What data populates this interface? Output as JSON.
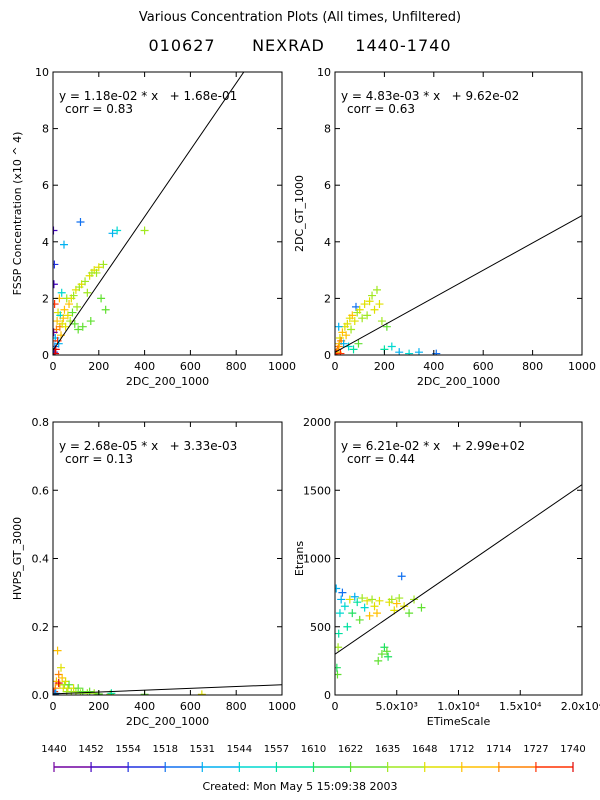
{
  "title": "Various Concentration Plots (All times, Unfiltered)",
  "subtitle": "010627      NEXRAD     1440-1740",
  "created": "Created: Mon May  5 15:09:38 2003",
  "colors": {
    "axis": "#000000",
    "fit_line": "#000000",
    "palette": [
      "#7000a0",
      "#4000c0",
      "#2030e0",
      "#1070f0",
      "#00b0f0",
      "#00d8d0",
      "#00e0a0",
      "#20e060",
      "#60e030",
      "#a0e820",
      "#e0e000",
      "#ffc000",
      "#ff8000",
      "#ff3000",
      "#e00000"
    ]
  },
  "time_legend": {
    "labels": [
      "1440",
      "1452",
      "1554",
      "1518",
      "1531",
      "1544",
      "1557",
      "1610",
      "1622",
      "1635",
      "1648",
      "1712",
      "1714",
      "1727",
      "1740"
    ]
  },
  "chart_data": [
    {
      "type": "scatter",
      "id": "p1",
      "xlabel": "2DC_200_1000",
      "ylabel": "FSSP Concentration (x10 ^ 4)",
      "xlim": [
        0,
        1000
      ],
      "ylim": [
        0,
        10
      ],
      "xticks": [
        0,
        200,
        400,
        600,
        800,
        1000
      ],
      "yticks": [
        0,
        2,
        4,
        6,
        8,
        10
      ],
      "xtick_labels": [
        "0",
        "200",
        "400",
        "600",
        "800",
        "1000"
      ],
      "ytick_labels": [
        "0",
        "2",
        "4",
        "6",
        "8",
        "10"
      ],
      "fit": {
        "slope": 0.0118,
        "intercept": 0.168
      },
      "equation": "y = 1.18e-02 * x   + 1.68e-01",
      "corr": "corr = 0.83",
      "points": [
        [
          5,
          0.1,
          2
        ],
        [
          8,
          0.3,
          3
        ],
        [
          10,
          0.6,
          4
        ],
        [
          12,
          0.2,
          14
        ],
        [
          15,
          0.9,
          12
        ],
        [
          18,
          1.2,
          11
        ],
        [
          20,
          0.5,
          13
        ],
        [
          22,
          1.5,
          10
        ],
        [
          25,
          0.4,
          4
        ],
        [
          28,
          2.0,
          11
        ],
        [
          30,
          1.0,
          12
        ],
        [
          32,
          1.4,
          5
        ],
        [
          35,
          0.7,
          11
        ],
        [
          38,
          2.2,
          5
        ],
        [
          40,
          1.1,
          10
        ],
        [
          45,
          1.3,
          11
        ],
        [
          48,
          3.9,
          4
        ],
        [
          50,
          1.6,
          11
        ],
        [
          55,
          1.0,
          10
        ],
        [
          60,
          2.0,
          9
        ],
        [
          65,
          1.4,
          10
        ],
        [
          70,
          1.8,
          11
        ],
        [
          75,
          1.2,
          9
        ],
        [
          80,
          2.0,
          10
        ],
        [
          85,
          1.5,
          8
        ],
        [
          90,
          2.1,
          9
        ],
        [
          95,
          1.1,
          8
        ],
        [
          100,
          2.3,
          10
        ],
        [
          105,
          1.7,
          9
        ],
        [
          110,
          0.9,
          8
        ],
        [
          115,
          2.4,
          9
        ],
        [
          120,
          4.7,
          3
        ],
        [
          125,
          2.5,
          10
        ],
        [
          130,
          1.0,
          8
        ],
        [
          140,
          2.6,
          9
        ],
        [
          150,
          2.2,
          9
        ],
        [
          160,
          2.8,
          10
        ],
        [
          165,
          1.2,
          8
        ],
        [
          170,
          2.9,
          9
        ],
        [
          180,
          3.0,
          10
        ],
        [
          190,
          2.9,
          9
        ],
        [
          200,
          3.1,
          10
        ],
        [
          210,
          2.0,
          8
        ],
        [
          220,
          3.2,
          9
        ],
        [
          230,
          1.6,
          8
        ],
        [
          260,
          4.3,
          4
        ],
        [
          280,
          4.4,
          5
        ],
        [
          400,
          4.4,
          9
        ],
        [
          3,
          0.8,
          0
        ],
        [
          4,
          2.5,
          1
        ],
        [
          6,
          3.2,
          2
        ],
        [
          2,
          4.4,
          1
        ],
        [
          7,
          1.8,
          13
        ],
        [
          9,
          0.05,
          14
        ]
      ]
    },
    {
      "type": "scatter",
      "id": "p2",
      "xlabel": "2DC_200_1000",
      "ylabel": "2DC_GT_1000",
      "xlim": [
        0,
        1000
      ],
      "ylim": [
        0,
        10
      ],
      "xticks": [
        0,
        200,
        400,
        600,
        800,
        1000
      ],
      "yticks": [
        0,
        2,
        4,
        6,
        8,
        10
      ],
      "xtick_labels": [
        "0",
        "200",
        "400",
        "600",
        "800",
        "1000"
      ],
      "ytick_labels": [
        "0",
        "2",
        "4",
        "6",
        "8",
        "10"
      ],
      "fit": {
        "slope": 0.00483,
        "intercept": 0.0962
      },
      "equation": "y = 4.83e-03 * x   + 9.62e-02",
      "corr": "corr = 0.63",
      "points": [
        [
          5,
          0.05,
          13
        ],
        [
          8,
          0.1,
          14
        ],
        [
          10,
          0.2,
          12
        ],
        [
          12,
          0.1,
          11
        ],
        [
          15,
          0.3,
          12
        ],
        [
          18,
          0.4,
          11
        ],
        [
          20,
          0.6,
          10
        ],
        [
          25,
          0.5,
          12
        ],
        [
          30,
          0.8,
          11
        ],
        [
          35,
          0.4,
          4
        ],
        [
          40,
          1.0,
          10
        ],
        [
          45,
          0.7,
          11
        ],
        [
          50,
          1.1,
          10
        ],
        [
          55,
          0.3,
          5
        ],
        [
          60,
          1.3,
          10
        ],
        [
          65,
          0.9,
          9
        ],
        [
          70,
          1.4,
          11
        ],
        [
          75,
          0.2,
          6
        ],
        [
          80,
          1.2,
          10
        ],
        [
          85,
          1.7,
          3
        ],
        [
          90,
          1.5,
          9
        ],
        [
          95,
          0.4,
          8
        ],
        [
          100,
          1.6,
          10
        ],
        [
          110,
          1.3,
          9
        ],
        [
          120,
          1.8,
          10
        ],
        [
          130,
          1.4,
          9
        ],
        [
          140,
          1.9,
          10
        ],
        [
          150,
          2.1,
          9
        ],
        [
          160,
          1.6,
          10
        ],
        [
          170,
          2.3,
          9
        ],
        [
          180,
          1.8,
          10
        ],
        [
          190,
          1.2,
          9
        ],
        [
          200,
          0.2,
          6
        ],
        [
          210,
          1.0,
          8
        ],
        [
          230,
          0.3,
          5
        ],
        [
          260,
          0.1,
          4
        ],
        [
          300,
          0.05,
          5
        ],
        [
          340,
          0.1,
          4
        ],
        [
          410,
          0.05,
          3
        ],
        [
          15,
          1.0,
          4
        ],
        [
          22,
          0.05,
          13
        ]
      ]
    },
    {
      "type": "scatter",
      "id": "p3",
      "xlabel": "2DC_200_1000",
      "ylabel": "HVPS_GT_3000",
      "xlim": [
        0,
        1000
      ],
      "ylim": [
        0,
        0.8
      ],
      "xticks": [
        0,
        200,
        400,
        600,
        800,
        1000
      ],
      "yticks": [
        0,
        0.2,
        0.4,
        0.6,
        0.8
      ],
      "xtick_labels": [
        "0",
        "200",
        "400",
        "600",
        "800",
        "1000"
      ],
      "ytick_labels": [
        "0.0",
        "0.2",
        "0.4",
        "0.6",
        "0.8"
      ],
      "fit": {
        "slope": 2.68e-05,
        "intercept": 0.00333
      },
      "equation": "y = 2.68e-05 * x   + 3.33e-03",
      "corr": "corr = 0.13",
      "points": [
        [
          5,
          0.01,
          13
        ],
        [
          10,
          0.02,
          12
        ],
        [
          15,
          0.04,
          11
        ],
        [
          20,
          0.13,
          11
        ],
        [
          25,
          0.06,
          12
        ],
        [
          30,
          0.03,
          11
        ],
        [
          35,
          0.08,
          10
        ],
        [
          40,
          0.05,
          11
        ],
        [
          45,
          0.02,
          10
        ],
        [
          50,
          0.03,
          9
        ],
        [
          55,
          0.04,
          10
        ],
        [
          60,
          0.01,
          9
        ],
        [
          65,
          0.02,
          10
        ],
        [
          70,
          0.03,
          8
        ],
        [
          80,
          0.01,
          9
        ],
        [
          90,
          0.02,
          10
        ],
        [
          100,
          0.01,
          9
        ],
        [
          110,
          0.02,
          8
        ],
        [
          120,
          0.005,
          9
        ],
        [
          130,
          0.01,
          8
        ],
        [
          150,
          0.005,
          9
        ],
        [
          160,
          0.01,
          8
        ],
        [
          180,
          0.005,
          9
        ],
        [
          200,
          0.003,
          8
        ],
        [
          250,
          0.002,
          9
        ],
        [
          400,
          0.002,
          8
        ],
        [
          650,
          0.002,
          10
        ],
        [
          255,
          0.005,
          6
        ],
        [
          12,
          0.005,
          4
        ],
        [
          8,
          0.003,
          3
        ],
        [
          25,
          0.035,
          14
        ]
      ]
    },
    {
      "type": "scatter",
      "id": "p4",
      "xlabel": "ETimeScale",
      "ylabel": "Etrans",
      "xlim": [
        0,
        20000
      ],
      "ylim": [
        0,
        2000
      ],
      "xticks": [
        0,
        5000,
        10000,
        15000,
        20000
      ],
      "yticks": [
        0,
        500,
        1000,
        1500,
        2000
      ],
      "xtick_labels": [
        "0",
        "5.0x10³",
        "1.0x10⁴",
        "1.5x10⁴",
        "2.0x10⁴"
      ],
      "ytick_labels": [
        "0",
        "500",
        "1000",
        "1500",
        "2000"
      ],
      "fit": {
        "slope": 0.0621,
        "intercept": 299
      },
      "equation": "y = 6.21e-02 * x   + 2.99e+02",
      "corr": "corr = 0.44",
      "points": [
        [
          200,
          150,
          8
        ],
        [
          300,
          450,
          6
        ],
        [
          400,
          600,
          5
        ],
        [
          500,
          700,
          4
        ],
        [
          600,
          750,
          3
        ],
        [
          800,
          650,
          5
        ],
        [
          1000,
          500,
          6
        ],
        [
          1200,
          700,
          10
        ],
        [
          1400,
          600,
          7
        ],
        [
          1600,
          720,
          4
        ],
        [
          1800,
          680,
          6
        ],
        [
          2000,
          550,
          8
        ],
        [
          2200,
          710,
          9
        ],
        [
          2400,
          640,
          5
        ],
        [
          2600,
          690,
          10
        ],
        [
          2800,
          580,
          11
        ],
        [
          3000,
          700,
          9
        ],
        [
          3200,
          650,
          10
        ],
        [
          3400,
          600,
          11
        ],
        [
          3600,
          690,
          10
        ],
        [
          3800,
          300,
          8
        ],
        [
          4000,
          350,
          7
        ],
        [
          4200,
          320,
          8
        ],
        [
          4400,
          680,
          10
        ],
        [
          4600,
          700,
          9
        ],
        [
          4800,
          620,
          10
        ],
        [
          5000,
          670,
          11
        ],
        [
          5200,
          710,
          9
        ],
        [
          5400,
          870,
          3
        ],
        [
          5600,
          650,
          10
        ],
        [
          6000,
          600,
          8
        ],
        [
          6400,
          700,
          9
        ],
        [
          7000,
          640,
          8
        ],
        [
          3500,
          250,
          8
        ],
        [
          4300,
          280,
          7
        ],
        [
          100,
          780,
          4
        ],
        [
          150,
          200,
          7
        ],
        [
          250,
          350,
          9
        ]
      ]
    }
  ]
}
